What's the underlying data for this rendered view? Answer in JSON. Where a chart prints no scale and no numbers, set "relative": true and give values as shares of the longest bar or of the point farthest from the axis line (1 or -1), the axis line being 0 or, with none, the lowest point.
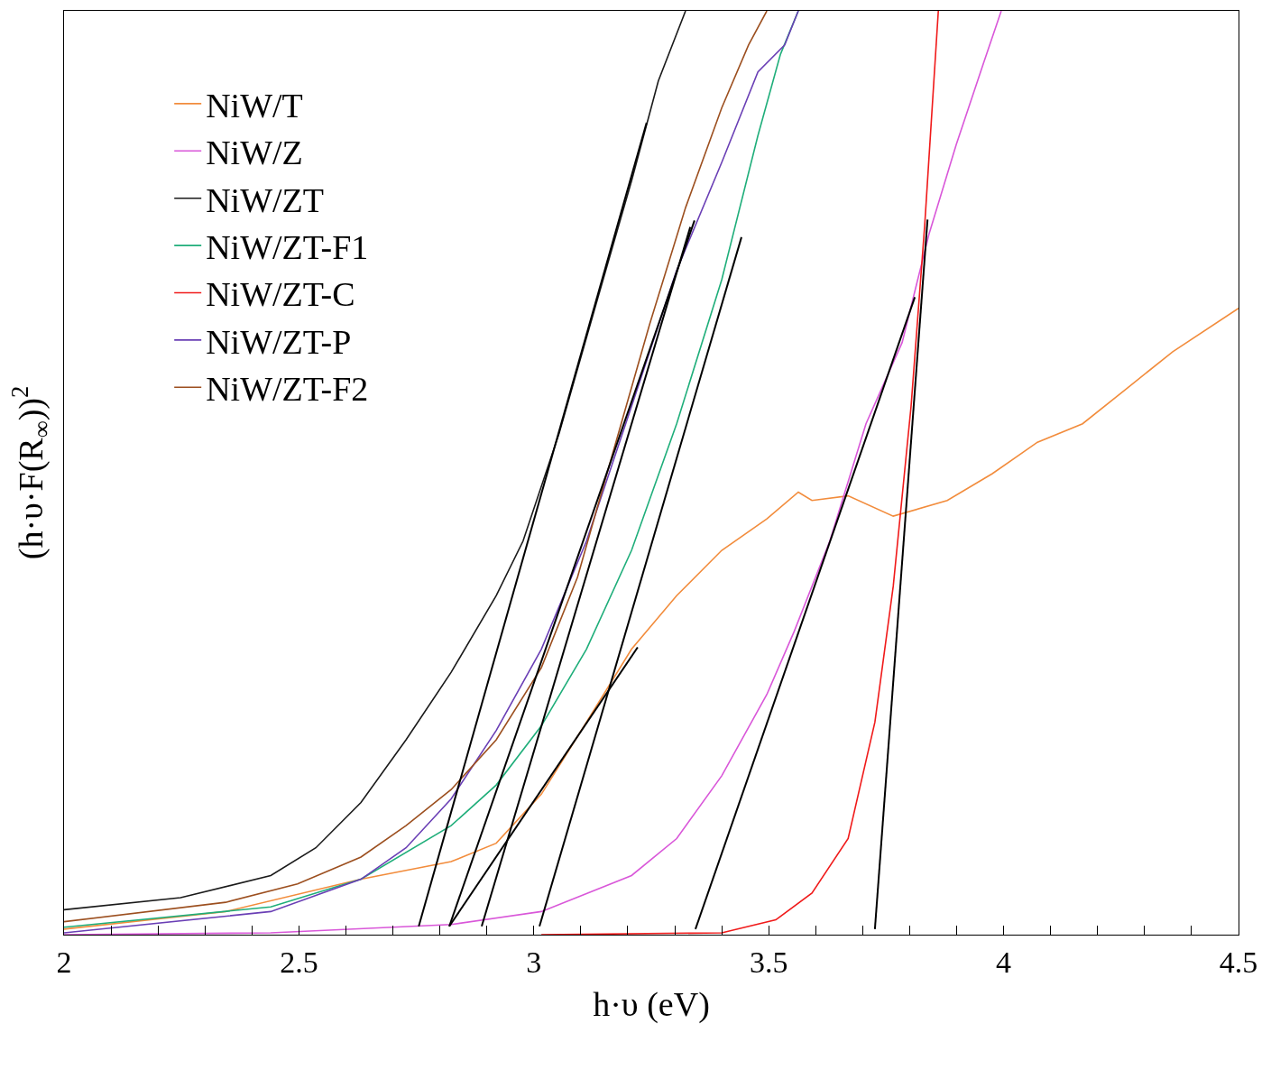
{
  "chart_data": {
    "type": "line",
    "relative": true,
    "xlabel": "h·υ (eV)",
    "ylabel": "(h·υ·F(R$_{∞}$))$^{2}$",
    "xlim": [
      2,
      4.5
    ],
    "xticks": [
      2,
      {
        "value": 2.1,
        "label": null
      },
      {
        "value": 2.2,
        "label": null
      },
      {
        "value": 2.3,
        "label": null
      },
      {
        "value": 2.4,
        "label": null
      },
      2.5,
      {
        "value": 2.6,
        "label": null
      },
      {
        "value": 2.7,
        "label": null
      },
      {
        "value": 2.8,
        "label": null
      },
      {
        "value": 2.9,
        "label": null
      },
      3,
      {
        "value": 3.1,
        "label": null
      },
      {
        "value": 3.2,
        "label": null
      },
      {
        "value": 3.3,
        "label": null
      },
      {
        "value": 3.4,
        "label": null
      },
      3.5,
      {
        "value": 3.6,
        "label": null
      },
      {
        "value": 3.7,
        "label": null
      },
      {
        "value": 3.8,
        "label": null
      },
      {
        "value": 3.9,
        "label": null
      },
      4,
      {
        "value": 4.1,
        "label": null
      },
      {
        "value": 4.2,
        "label": null
      },
      {
        "value": 4.3,
        "label": null
      },
      {
        "value": 4.4,
        "label": null
      },
      4.5
    ],
    "tick_labels": "x",
    "legend": "top left",
    "marker": "none",
    "line_style": "solid",
    "series": [
      {
        "name": "NiW/T",
        "color": "#f28c3c",
        "x": [
          2,
          2.344,
          2.632,
          2.824,
          2.92,
          3.016,
          3.112,
          3.208,
          3.304,
          3.4,
          3.496,
          3.563,
          3.592,
          3.669,
          3.765,
          3.88,
          3.976,
          4.072,
          4.168,
          4.264,
          4.36,
          4.5
        ],
        "values": [
          0.006,
          0.025,
          0.06,
          0.079,
          0.099,
          0.152,
          0.23,
          0.309,
          0.367,
          0.416,
          0.45,
          0.479,
          0.47,
          0.475,
          0.453,
          0.47,
          0.499,
          0.533,
          0.553,
          0.592,
          0.631,
          0.678
        ]
      },
      {
        "name": "NiW/Z",
        "color": "#d957d9",
        "x": [
          2,
          2.44,
          2.824,
          3.016,
          3.208,
          3.304,
          3.4,
          3.496,
          3.554,
          3.63,
          3.707,
          3.784,
          3.841,
          3.899,
          3.957,
          3.995
        ],
        "values": [
          0,
          0.002,
          0.011,
          0.025,
          0.064,
          0.104,
          0.172,
          0.26,
          0.328,
          0.426,
          0.553,
          0.641,
          0.758,
          0.855,
          0.943,
          1.0
        ]
      },
      {
        "name": "NiW/ZT",
        "color": "#1a1a1a",
        "x": [
          2,
          2.248,
          2.44,
          2.536,
          2.632,
          2.728,
          2.824,
          2.92,
          2.977,
          3.054,
          3.131,
          3.208,
          3.265,
          3.323
        ],
        "values": [
          0.027,
          0.04,
          0.064,
          0.094,
          0.143,
          0.211,
          0.284,
          0.367,
          0.426,
          0.543,
          0.68,
          0.816,
          0.924,
          1.0
        ]
      },
      {
        "name": "NiW/ZT-F1",
        "color": "#1fae7a",
        "x": [
          2,
          2.44,
          2.632,
          2.824,
          2.92,
          3.016,
          3.112,
          3.208,
          3.304,
          3.4,
          3.477,
          3.525,
          3.563
        ],
        "values": [
          0.008,
          0.03,
          0.06,
          0.118,
          0.162,
          0.226,
          0.309,
          0.416,
          0.553,
          0.709,
          0.865,
          0.953,
          1.0
        ]
      },
      {
        "name": "NiW/ZT-C",
        "color": "#f01a1a",
        "x": [
          3.016,
          3.4,
          3.515,
          3.592,
          3.669,
          3.726,
          3.765,
          3.803,
          3.832,
          3.861
        ],
        "values": [
          0,
          0.002,
          0.016,
          0.045,
          0.104,
          0.23,
          0.377,
          0.572,
          0.768,
          1.0
        ]
      },
      {
        "name": "NiW/ZT-P",
        "color": "#6a3fb5",
        "x": [
          2,
          2.44,
          2.632,
          2.728,
          2.824,
          2.92,
          3.016,
          3.112,
          3.208,
          3.304,
          3.4,
          3.477,
          3.534,
          3.563
        ],
        "values": [
          0.002,
          0.025,
          0.06,
          0.094,
          0.147,
          0.221,
          0.309,
          0.426,
          0.572,
          0.719,
          0.836,
          0.934,
          0.963,
          1.0
        ]
      },
      {
        "name": "NiW/ZT-F2",
        "color": "#9c4f1f",
        "x": [
          2,
          2.344,
          2.497,
          2.632,
          2.728,
          2.824,
          2.92,
          3.016,
          3.093,
          3.169,
          3.246,
          3.323,
          3.4,
          3.457,
          3.496
        ],
        "values": [
          0.014,
          0.035,
          0.055,
          0.084,
          0.118,
          0.157,
          0.211,
          0.289,
          0.387,
          0.523,
          0.66,
          0.787,
          0.895,
          0.963,
          1.0
        ]
      },
      {
        "type": "line",
        "color": "#000000",
        "x": [
          3.24,
          2.755
        ],
        "values": [
          0.879,
          0.009
        ]
      },
      {
        "type": "line",
        "color": "#000000",
        "x": [
          3.342,
          2.82
        ],
        "values": [
          0.773,
          0.009
        ]
      },
      {
        "type": "line",
        "color": "#000000",
        "x": [
          3.333,
          2.889
        ],
        "values": [
          0.766,
          0.009
        ]
      },
      {
        "type": "line",
        "color": "#000000",
        "x": [
          3.221,
          2.82
        ],
        "values": [
          0.311,
          0.009
        ]
      },
      {
        "type": "line",
        "color": "#000000",
        "x": [
          3.442,
          3.012
        ],
        "values": [
          0.755,
          0.009
        ]
      },
      {
        "type": "line",
        "color": "#000000",
        "x": [
          3.811,
          3.344
        ],
        "values": [
          0.69,
          0.006
        ]
      },
      {
        "type": "line",
        "color": "#000000",
        "x": [
          3.838,
          3.726
        ],
        "values": [
          0.774,
          0.006
        ]
      }
    ]
  }
}
